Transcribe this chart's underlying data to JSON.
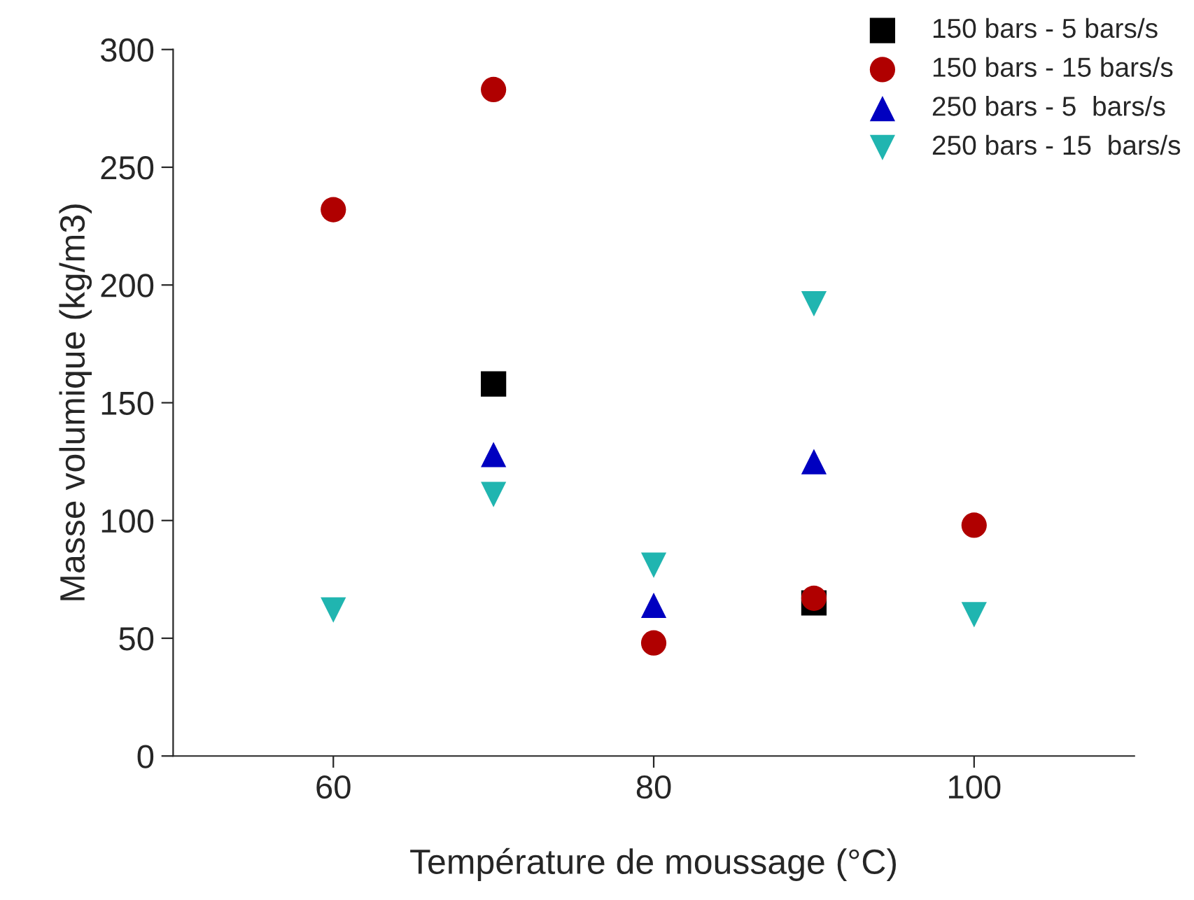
{
  "chart_data": {
    "type": "scatter",
    "xlabel": "Température de moussage (°C)",
    "ylabel": "Masse volumique (kg/m3)",
    "xlim": [
      50,
      110
    ],
    "xticks": [
      60,
      80,
      100
    ],
    "ylim": [
      0,
      300
    ],
    "yticks": [
      0,
      50,
      100,
      150,
      200,
      250,
      300
    ],
    "grid": false,
    "legend": "top right",
    "series": [
      {
        "name": "150 bars - 5 bars/s",
        "color": "#000000",
        "marker": "square",
        "x": [
          70,
          90
        ],
        "values": [
          158,
          65
        ]
      },
      {
        "name": "150 bars - 15 bars/s",
        "color": "#b00000",
        "marker": "circle",
        "x": [
          60,
          70,
          80,
          90,
          100
        ],
        "values": [
          232,
          283,
          48,
          67,
          98
        ]
      },
      {
        "name": "250 bars - 5  bars/s",
        "color": "#0000c0",
        "marker": "triangle",
        "x": [
          70,
          80,
          90
        ],
        "values": [
          128,
          64,
          125
        ]
      },
      {
        "name": "250 bars - 15  bars/s",
        "color": "#20b5b0",
        "marker": "triangle_down",
        "x": [
          60,
          70,
          80,
          90,
          100
        ],
        "values": [
          62,
          111,
          81,
          192,
          60
        ]
      }
    ]
  }
}
